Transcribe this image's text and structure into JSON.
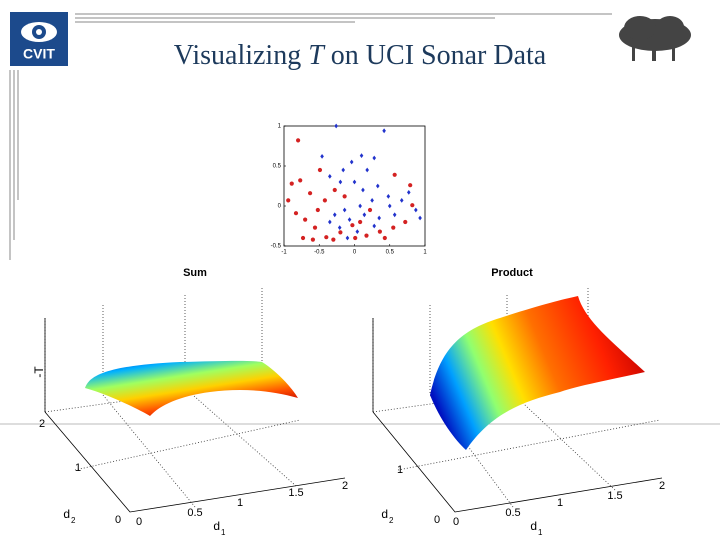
{
  "header": {
    "logo": "CVIT",
    "title_prefix": "Visualizing ",
    "title_italic": "T",
    "title_suffix": " on UCI Sonar Data"
  },
  "chart_data": [
    {
      "type": "scatter",
      "xlim": [
        -1,
        1
      ],
      "ylim": [
        -0.5,
        1
      ],
      "xticks": [
        -1,
        -0.5,
        0,
        0.5,
        1
      ],
      "yticks": [
        -0.5,
        0,
        0.5,
        1
      ],
      "series": [
        {
          "color": "#2233cc",
          "marker": "diamond",
          "x": [
            -0.26,
            0.42,
            0.1,
            -0.46,
            -0.16,
            -0.04,
            0.18,
            0.28,
            -0.35,
            -0.2,
            0.0,
            0.12,
            0.33,
            0.77,
            0.87,
            0.67,
            0.5,
            0.25,
            0.08,
            -0.14,
            -0.28,
            -0.07,
            0.14,
            0.35,
            0.57,
            0.93,
            -0.21,
            0.04,
            0.28,
            -0.1,
            -0.35,
            0.48
          ],
          "values": [
            1.0,
            0.94,
            0.63,
            0.62,
            0.45,
            0.55,
            0.45,
            0.6,
            0.37,
            0.3,
            0.3,
            0.2,
            0.25,
            0.17,
            -0.05,
            0.07,
            0.0,
            0.07,
            0.0,
            -0.05,
            -0.11,
            -0.17,
            -0.11,
            -0.15,
            -0.11,
            -0.15,
            -0.27,
            -0.32,
            -0.25,
            -0.4,
            -0.2,
            0.12
          ]
        },
        {
          "color": "#d42222",
          "marker": "circle",
          "x": [
            -0.77,
            -0.89,
            -0.94,
            -0.83,
            -0.7,
            -0.73,
            -0.56,
            -0.4,
            -0.52,
            -0.63,
            -0.42,
            -0.28,
            -0.49,
            -0.3,
            -0.2,
            -0.03,
            0.17,
            0.36,
            0.55,
            0.72,
            0.82,
            0.79,
            0.57,
            0.01,
            -0.8,
            -0.14,
            -0.59,
            0.22,
            0.08,
            0.43
          ],
          "values": [
            0.32,
            0.28,
            0.07,
            -0.09,
            -0.17,
            -0.4,
            -0.27,
            -0.39,
            -0.05,
            0.16,
            0.07,
            0.2,
            0.45,
            -0.42,
            -0.33,
            -0.24,
            -0.37,
            -0.32,
            -0.27,
            -0.2,
            0.01,
            0.26,
            0.39,
            -0.4,
            0.82,
            0.12,
            -0.42,
            -0.05,
            -0.2,
            -0.4
          ]
        }
      ]
    },
    {
      "type": "surface3d",
      "title": "Sum",
      "zlabel": "-T",
      "zticks": [
        2
      ],
      "xlabel": [
        "d",
        "1"
      ],
      "xticks": [
        0,
        0.5,
        1,
        1.5,
        2
      ],
      "ylabel": [
        "d",
        "2"
      ],
      "yticks": [
        0,
        1
      ]
    },
    {
      "type": "surface3d",
      "title": "Product",
      "xlabel": [
        "d",
        "1"
      ],
      "xticks": [
        0,
        0.5,
        1,
        1.5,
        2
      ],
      "ylabel": [
        "d",
        "2"
      ],
      "yticks": [
        0,
        1
      ]
    }
  ]
}
